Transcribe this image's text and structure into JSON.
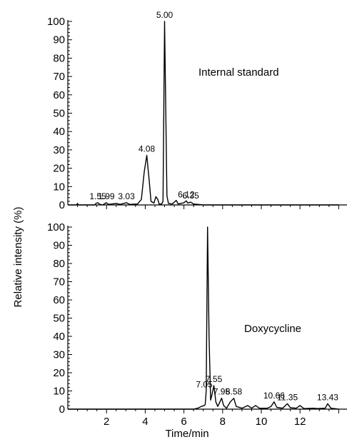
{
  "chart_data": [
    {
      "type": "line",
      "label": "Internal standard",
      "ylim": [
        0,
        100
      ],
      "xlim": [
        0,
        14
      ],
      "yticks": [
        0,
        10,
        20,
        30,
        40,
        50,
        60,
        70,
        80,
        90,
        100
      ],
      "points": [
        [
          0,
          0
        ],
        [
          0.45,
          0
        ],
        [
          0.5,
          0.8
        ],
        [
          0.55,
          0
        ],
        [
          1.4,
          0
        ],
        [
          1.45,
          0.8
        ],
        [
          1.55,
          1.2
        ],
        [
          1.65,
          0.4
        ],
        [
          1.8,
          0
        ],
        [
          1.99,
          1.2
        ],
        [
          2.1,
          0.3
        ],
        [
          2.5,
          0.8
        ],
        [
          2.7,
          0.3
        ],
        [
          3.03,
          1.2
        ],
        [
          3.2,
          0.3
        ],
        [
          3.6,
          0.5
        ],
        [
          3.8,
          3.0
        ],
        [
          3.95,
          18
        ],
        [
          4.08,
          27
        ],
        [
          4.2,
          14
        ],
        [
          4.3,
          2
        ],
        [
          4.45,
          1
        ],
        [
          4.55,
          4.5
        ],
        [
          4.65,
          3
        ],
        [
          4.72,
          0.5
        ],
        [
          4.85,
          0.5
        ],
        [
          4.92,
          2
        ],
        [
          5.0,
          100
        ],
        [
          5.07,
          45
        ],
        [
          5.12,
          5
        ],
        [
          5.2,
          0.8
        ],
        [
          5.4,
          0.5
        ],
        [
          5.6,
          2.5
        ],
        [
          5.7,
          0.5
        ],
        [
          6.0,
          1.2
        ],
        [
          6.12,
          2.2
        ],
        [
          6.2,
          1.0
        ],
        [
          6.35,
          1.5
        ],
        [
          6.5,
          0.5
        ],
        [
          7.0,
          0
        ],
        [
          14,
          0
        ]
      ],
      "annotations": [
        {
          "x": 1.55,
          "text": "1.55"
        },
        {
          "x": 1.99,
          "text": "1.99"
        },
        {
          "x": 3.03,
          "text": "3.03"
        },
        {
          "x": 4.08,
          "text": "4.08"
        },
        {
          "x": 5.0,
          "text": "5.00"
        },
        {
          "x": 6.12,
          "text": "6.12"
        },
        {
          "x": 6.35,
          "text": "6.35"
        }
      ]
    },
    {
      "type": "line",
      "label": "Doxycycline",
      "ylim": [
        0,
        100
      ],
      "xlim": [
        0,
        14
      ],
      "xticks": [
        2,
        4,
        6,
        8,
        10,
        12
      ],
      "yticks": [
        0,
        10,
        20,
        30,
        40,
        50,
        60,
        70,
        80,
        90,
        100
      ],
      "points": [
        [
          0,
          0
        ],
        [
          6.5,
          0
        ],
        [
          6.7,
          0.5
        ],
        [
          6.9,
          1.5
        ],
        [
          7.05,
          2
        ],
        [
          7.1,
          2.5
        ],
        [
          7.15,
          10
        ],
        [
          7.22,
          100
        ],
        [
          7.3,
          40
        ],
        [
          7.38,
          5
        ],
        [
          7.45,
          8
        ],
        [
          7.55,
          13
        ],
        [
          7.65,
          4
        ],
        [
          7.75,
          1.5
        ],
        [
          7.95,
          6
        ],
        [
          8.05,
          2
        ],
        [
          8.2,
          0.5
        ],
        [
          8.4,
          4
        ],
        [
          8.58,
          6
        ],
        [
          8.7,
          1.5
        ],
        [
          9.0,
          0.5
        ],
        [
          9.3,
          2
        ],
        [
          9.5,
          0.5
        ],
        [
          9.7,
          2
        ],
        [
          9.9,
          0.5
        ],
        [
          10.3,
          0.5
        ],
        [
          10.5,
          1.5
        ],
        [
          10.66,
          4
        ],
        [
          10.8,
          1
        ],
        [
          11.1,
          0.5
        ],
        [
          11.35,
          3
        ],
        [
          11.5,
          0.8
        ],
        [
          11.8,
          0.5
        ],
        [
          12.0,
          2
        ],
        [
          12.2,
          0.3
        ],
        [
          12.7,
          0.5
        ],
        [
          12.9,
          0.3
        ],
        [
          13.3,
          0.5
        ],
        [
          13.43,
          3
        ],
        [
          13.6,
          0.5
        ],
        [
          14,
          0
        ]
      ],
      "annotations": [
        {
          "x": 7.05,
          "text": "7.05"
        },
        {
          "x": 7.55,
          "text": "7.55"
        },
        {
          "x": 7.95,
          "text": "7.95"
        },
        {
          "x": 8.58,
          "text": "8.58"
        },
        {
          "x": 10.66,
          "text": "10.66"
        },
        {
          "x": 11.35,
          "text": "11.35"
        },
        {
          "x": 13.43,
          "text": "13.43"
        }
      ]
    }
  ],
  "ylabel": "Relative intensity (%)",
  "xlabel": "Time/min"
}
